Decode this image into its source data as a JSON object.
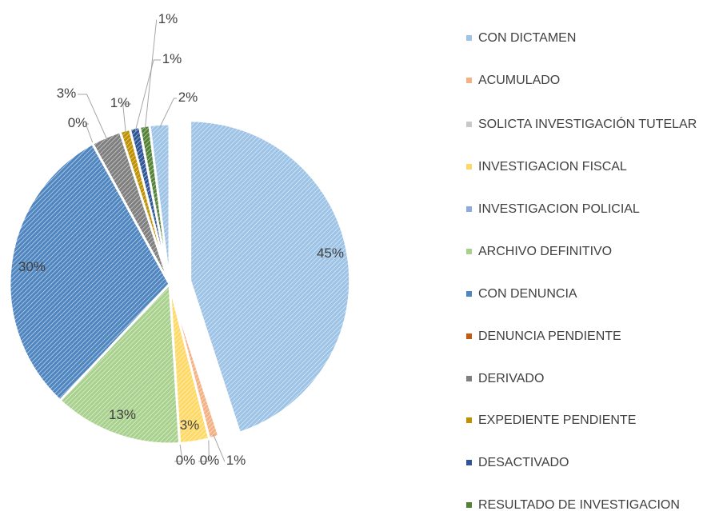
{
  "chart_data": {
    "type": "pie",
    "categories": [
      "CON DICTAMEN",
      "ACUMULADO",
      "SOLICTA INVESTIGACIÓN TUTELAR",
      "INVESTIGACION FISCAL",
      "INVESTIGACION POLICIAL",
      "ARCHIVO DEFINITIVO",
      "CON DENUNCIA",
      "DENUNCIA PENDIENTE",
      "DERIVADO",
      "EXPEDIENTE PENDIENTE",
      "DESACTIVADO",
      "RESULTADO DE INVESTIGACION",
      null
    ],
    "values": [
      45,
      1,
      0,
      3,
      0,
      13,
      30,
      0,
      3,
      1,
      1,
      1,
      2
    ],
    "colors": [
      "#9dc3e6",
      "#f4b183",
      "#c9c9c9",
      "#ffd966",
      "#8faadc",
      "#a9d18e",
      "#4f86c0",
      "#c55a11",
      "#7f7f7f",
      "#bf9000",
      "#2f5597",
      "#548235",
      "#9dc3e6"
    ]
  }
}
